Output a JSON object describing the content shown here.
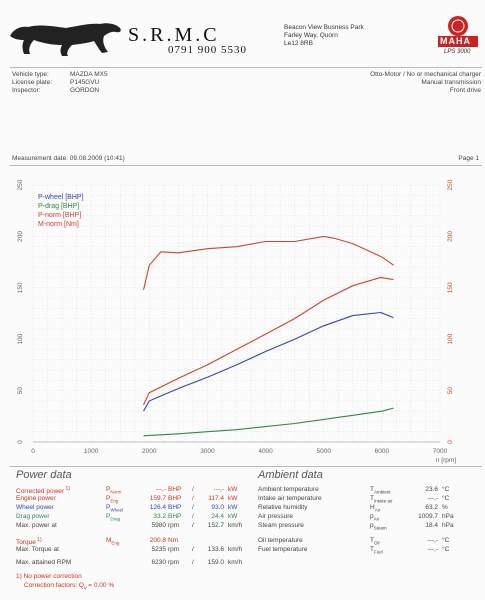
{
  "header": {
    "company": "S.R.M.C",
    "phone": "0791 900 5530",
    "address": [
      "Beacon View Busness Park",
      "Farley Way, Quorn",
      "Le12 8RB"
    ],
    "maha_logo": "MAHA",
    "model": "LPS 3000"
  },
  "vehicle": {
    "labels": [
      "Vehicle type:",
      "License plate:",
      "Inspector:"
    ],
    "values": [
      "MAZDA MX5",
      "P145GVU",
      "GORDON"
    ],
    "right": [
      "Otto-Motor / No or mechanical charger",
      "Manual transmission",
      "Front drive"
    ]
  },
  "measurement": {
    "date": "Measurement date: 09.08.2009 (10:41)",
    "page": "Page 1"
  },
  "chart_data": {
    "type": "line",
    "x_axis": {
      "min": 0,
      "max": 7000,
      "ticks": [
        0,
        1000,
        2000,
        3000,
        4000,
        5000,
        6000,
        7000
      ],
      "label": "n [rpm]"
    },
    "y_axis_left": {
      "min": 0,
      "max": 250,
      "ticks": [
        0,
        50,
        100,
        150,
        200,
        250
      ]
    },
    "y_axis_right": {
      "min": 0,
      "max": 250,
      "ticks": [
        0,
        50,
        100,
        150,
        200,
        250
      ]
    },
    "legend": [
      "P-wheel [BHP]",
      "P-drag [BHP]",
      "P-norm [BHP]",
      "M-norm [Nm]"
    ],
    "series": [
      {
        "name": "P-wheel [BHP]",
        "color": "#3344bb",
        "x": [
          1900,
          2000,
          2500,
          3000,
          3500,
          4000,
          4500,
          5000,
          5500,
          5980,
          6200
        ],
        "y": [
          30,
          40,
          52,
          63,
          75,
          88,
          100,
          113,
          123,
          126,
          121
        ]
      },
      {
        "name": "P-drag [BHP]",
        "color": "#338844",
        "x": [
          1900,
          2500,
          3000,
          3500,
          4000,
          4500,
          5000,
          5500,
          6000,
          6200
        ],
        "y": [
          6,
          8,
          10,
          12,
          15,
          18,
          22,
          26,
          30,
          33
        ]
      },
      {
        "name": "P-norm [BHP]",
        "color": "#cc4433",
        "x": [
          1900,
          2000,
          2500,
          3000,
          3500,
          4000,
          4500,
          5000,
          5500,
          5980,
          6200
        ],
        "y": [
          36,
          48,
          62,
          75,
          90,
          105,
          120,
          138,
          152,
          160,
          158
        ]
      },
      {
        "name": "M-norm [Nm]",
        "color": "#cc4433",
        "x": [
          1900,
          2000,
          2200,
          2500,
          3000,
          3500,
          4000,
          4500,
          5000,
          5200,
          5500,
          6000,
          6200
        ],
        "y": [
          148,
          172,
          185,
          184,
          188,
          190,
          195,
          195,
          200,
          198,
          193,
          180,
          172
        ]
      }
    ]
  },
  "power_data": {
    "title": "Power data",
    "rows": [
      {
        "label": "Corrected power",
        "sup": "1)",
        "sym": "P",
        "sub": "Norm",
        "v1": "---,-",
        "u1": "BHP",
        "v2": "---,-",
        "u2": "kW",
        "color": "#cc3322"
      },
      {
        "label": "Engine power",
        "sup": "",
        "sym": "P",
        "sub": "Eng",
        "v1": "159.7",
        "u1": "BHP",
        "v2": "117.4",
        "u2": "kW",
        "color": "#cc3322"
      },
      {
        "label": "Wheel power",
        "sup": "",
        "sym": "P",
        "sub": "Wheel",
        "v1": "126.4",
        "u1": "BHP",
        "v2": "93.0",
        "u2": "kW",
        "color": "#3344bb"
      },
      {
        "label": "Drag power",
        "sup": "",
        "sym": "P",
        "sub": "Drag",
        "v1": "33.2",
        "u1": "BHP",
        "v2": "24.4",
        "u2": "kW",
        "color": "#338844"
      },
      {
        "label": "Max. power at",
        "sup": "",
        "sym": "",
        "sub": "",
        "v1": "5980",
        "u1": "rpm",
        "v2": "152.7",
        "u2": "km/h",
        "color": "#444"
      },
      {
        "label": "Torque",
        "sup": "1)",
        "sym": "M",
        "sub": "Eng",
        "v1": "200.8",
        "u1": "Nm",
        "v2": "",
        "u2": "",
        "color": "#cc3322"
      },
      {
        "label": "Max. Torque at",
        "sup": "",
        "sym": "",
        "sub": "",
        "v1": "5235",
        "u1": "rpm",
        "v2": "133.6",
        "u2": "km/h",
        "color": "#444"
      },
      {
        "label": "Max. attained RPM",
        "sup": "",
        "sym": "",
        "sub": "",
        "v1": "6230",
        "u1": "rpm",
        "v2": "159.0",
        "u2": "km/h",
        "color": "#444"
      }
    ],
    "footnote1": "1) No power correction",
    "footnote2": "Correction factors: Q",
    "footnote2_sub": "v",
    "footnote2_val": "= 0.00 %"
  },
  "ambient_data": {
    "title": "Ambient data",
    "rows": [
      {
        "label": "Ambient temperature",
        "sym": "T",
        "sub": "Ambient",
        "val": "23.6",
        "unit": "°C"
      },
      {
        "label": "Intake air temperature",
        "sym": "T",
        "sub": "Intake air",
        "val": "---,-",
        "unit": "°C"
      },
      {
        "label": "Relative humidity",
        "sym": "H",
        "sub": "Air",
        "val": "63.2",
        "unit": "%"
      },
      {
        "label": "Air pressure",
        "sym": "p",
        "sub": "Air",
        "val": "1009.7",
        "unit": "hPa"
      },
      {
        "label": "Steam pressure",
        "sym": "p",
        "sub": "Steam",
        "val": "18.4",
        "unit": "hPa"
      },
      {
        "label": "Oil temperature",
        "sym": "T",
        "sub": "Oil",
        "val": "---,-",
        "unit": "°C"
      },
      {
        "label": "Fuel temperature",
        "sym": "T",
        "sub": "Fuel",
        "val": "---,-",
        "unit": "°C"
      }
    ]
  }
}
